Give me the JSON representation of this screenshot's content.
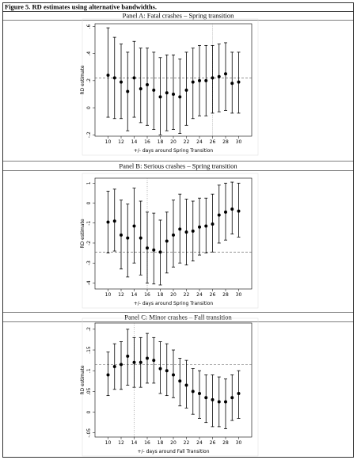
{
  "title": "Figure 5. RD estimates using alternative bandwidths.",
  "chart_data": [
    {
      "type": "errorbar",
      "title": "Panel A: Fatal crashes – Spring transition",
      "xlabel": "+/- days around Spring Transition",
      "ylabel": "RD estimate",
      "x": [
        10,
        11,
        12,
        13,
        14,
        15,
        16,
        17,
        18,
        19,
        20,
        21,
        22,
        23,
        24,
        25,
        26,
        27,
        28,
        29,
        30
      ],
      "values": [
        0.24,
        0.22,
        0.19,
        0.12,
        0.22,
        0.14,
        0.17,
        0.13,
        0.08,
        0.11,
        0.1,
        0.08,
        0.13,
        0.19,
        0.2,
        0.2,
        0.22,
        0.23,
        0.25,
        0.18,
        0.19
      ],
      "lower": [
        -0.07,
        -0.08,
        -0.08,
        -0.17,
        -0.07,
        -0.11,
        -0.13,
        -0.16,
        -0.2,
        -0.17,
        -0.16,
        -0.19,
        -0.13,
        -0.08,
        -0.06,
        -0.06,
        -0.04,
        -0.03,
        -0.02,
        -0.04,
        -0.04
      ],
      "upper": [
        0.59,
        0.52,
        0.47,
        0.41,
        0.49,
        0.44,
        0.44,
        0.41,
        0.37,
        0.39,
        0.39,
        0.36,
        0.41,
        0.44,
        0.46,
        0.46,
        0.46,
        0.47,
        0.48,
        0.41,
        0.41
      ],
      "reference_y": 0.22,
      "reference_x": 26,
      "color": "#000000",
      "xlim": [
        8,
        32
      ],
      "ylim": [
        -0.21,
        0.62
      ],
      "xticks": [
        10,
        12,
        14,
        16,
        18,
        20,
        22,
        24,
        26,
        28,
        30
      ],
      "yticks": [
        {
          "value": -0.2,
          "label": "-.2"
        },
        0,
        {
          "value": 0.2,
          "label": ".2"
        },
        {
          "value": 0.4,
          "label": ".4"
        },
        {
          "value": 0.6,
          "label": ".6"
        }
      ]
    },
    {
      "type": "errorbar",
      "title": "Panel B: Serious crashes – Spring transition",
      "xlabel": "+/- days around Spring Transition",
      "ylabel": "RD estimate",
      "x": [
        10,
        11,
        12,
        13,
        14,
        15,
        16,
        17,
        18,
        19,
        20,
        21,
        22,
        23,
        24,
        25,
        26,
        27,
        28,
        29,
        30
      ],
      "values": [
        -0.95,
        -0.9,
        -1.6,
        -1.75,
        -1.15,
        -1.75,
        -2.25,
        -2.35,
        -2.45,
        -1.9,
        -1.6,
        -1.3,
        -1.45,
        -1.4,
        -1.2,
        -1.15,
        -1.05,
        -0.6,
        -0.45,
        -0.3,
        -0.4
      ],
      "lower": [
        -2.5,
        -2.4,
        -3.3,
        -3.7,
        -3.0,
        -3.6,
        -4.0,
        -4.05,
        -4.1,
        -3.5,
        -3.2,
        -3.0,
        -3.1,
        -2.9,
        -2.6,
        -2.5,
        -2.45,
        -2.0,
        -1.85,
        -1.55,
        -1.7
      ],
      "upper": [
        0.6,
        0.7,
        0.15,
        -0.05,
        0.75,
        0.1,
        -0.45,
        -0.5,
        -0.85,
        -0.45,
        0.15,
        0.45,
        0.2,
        0.1,
        0.25,
        0.25,
        0.45,
        0.9,
        1.0,
        1.05,
        1.0
      ],
      "reference_y": -2.45,
      "reference_x": 16,
      "color": "#000000",
      "xlim": [
        8,
        32
      ],
      "ylim": [
        -4.3,
        1.25
      ],
      "xticks": [
        10,
        12,
        14,
        16,
        18,
        20,
        22,
        24,
        26,
        28,
        30
      ],
      "yticks": [
        -4,
        -3,
        -2,
        -1,
        0,
        1
      ]
    },
    {
      "type": "errorbar",
      "title": "Panel C: Minor crashes – Fall transition",
      "xlabel": "+/- days around Fall Transition",
      "ylabel": "RD estimate",
      "x": [
        10,
        11,
        12,
        13,
        14,
        15,
        16,
        17,
        18,
        19,
        20,
        21,
        22,
        23,
        24,
        25,
        26,
        27,
        28,
        29,
        30
      ],
      "values": [
        0.09,
        0.11,
        0.115,
        0.135,
        0.12,
        0.12,
        0.13,
        0.125,
        0.105,
        0.1,
        0.09,
        0.075,
        0.065,
        0.05,
        0.045,
        0.035,
        0.03,
        0.025,
        0.025,
        0.035,
        0.045
      ],
      "lower": [
        0.04,
        0.055,
        0.055,
        0.065,
        0.06,
        0.06,
        0.07,
        0.07,
        0.045,
        0.04,
        0.035,
        0.015,
        0.01,
        -0.005,
        -0.015,
        -0.025,
        -0.035,
        -0.035,
        -0.04,
        -0.02,
        -0.015
      ],
      "upper": [
        0.145,
        0.165,
        0.17,
        0.2,
        0.18,
        0.18,
        0.19,
        0.18,
        0.17,
        0.165,
        0.15,
        0.13,
        0.125,
        0.105,
        0.1,
        0.09,
        0.09,
        0.085,
        0.08,
        0.09,
        0.1
      ],
      "reference_y": 0.115,
      "reference_x": 14,
      "color": "#000000",
      "xlim": [
        8,
        32
      ],
      "ylim": [
        -0.06,
        0.215
      ],
      "xticks": [
        10,
        12,
        14,
        16,
        18,
        20,
        22,
        24,
        26,
        28,
        30
      ],
      "yticks": [
        {
          "value": -0.05,
          "label": "-.05"
        },
        0,
        {
          "value": 0.05,
          "label": ".05"
        },
        {
          "value": 0.1,
          "label": ".1"
        },
        {
          "value": 0.15,
          "label": ".15"
        },
        {
          "value": 0.2,
          "label": ".2"
        }
      ]
    }
  ]
}
